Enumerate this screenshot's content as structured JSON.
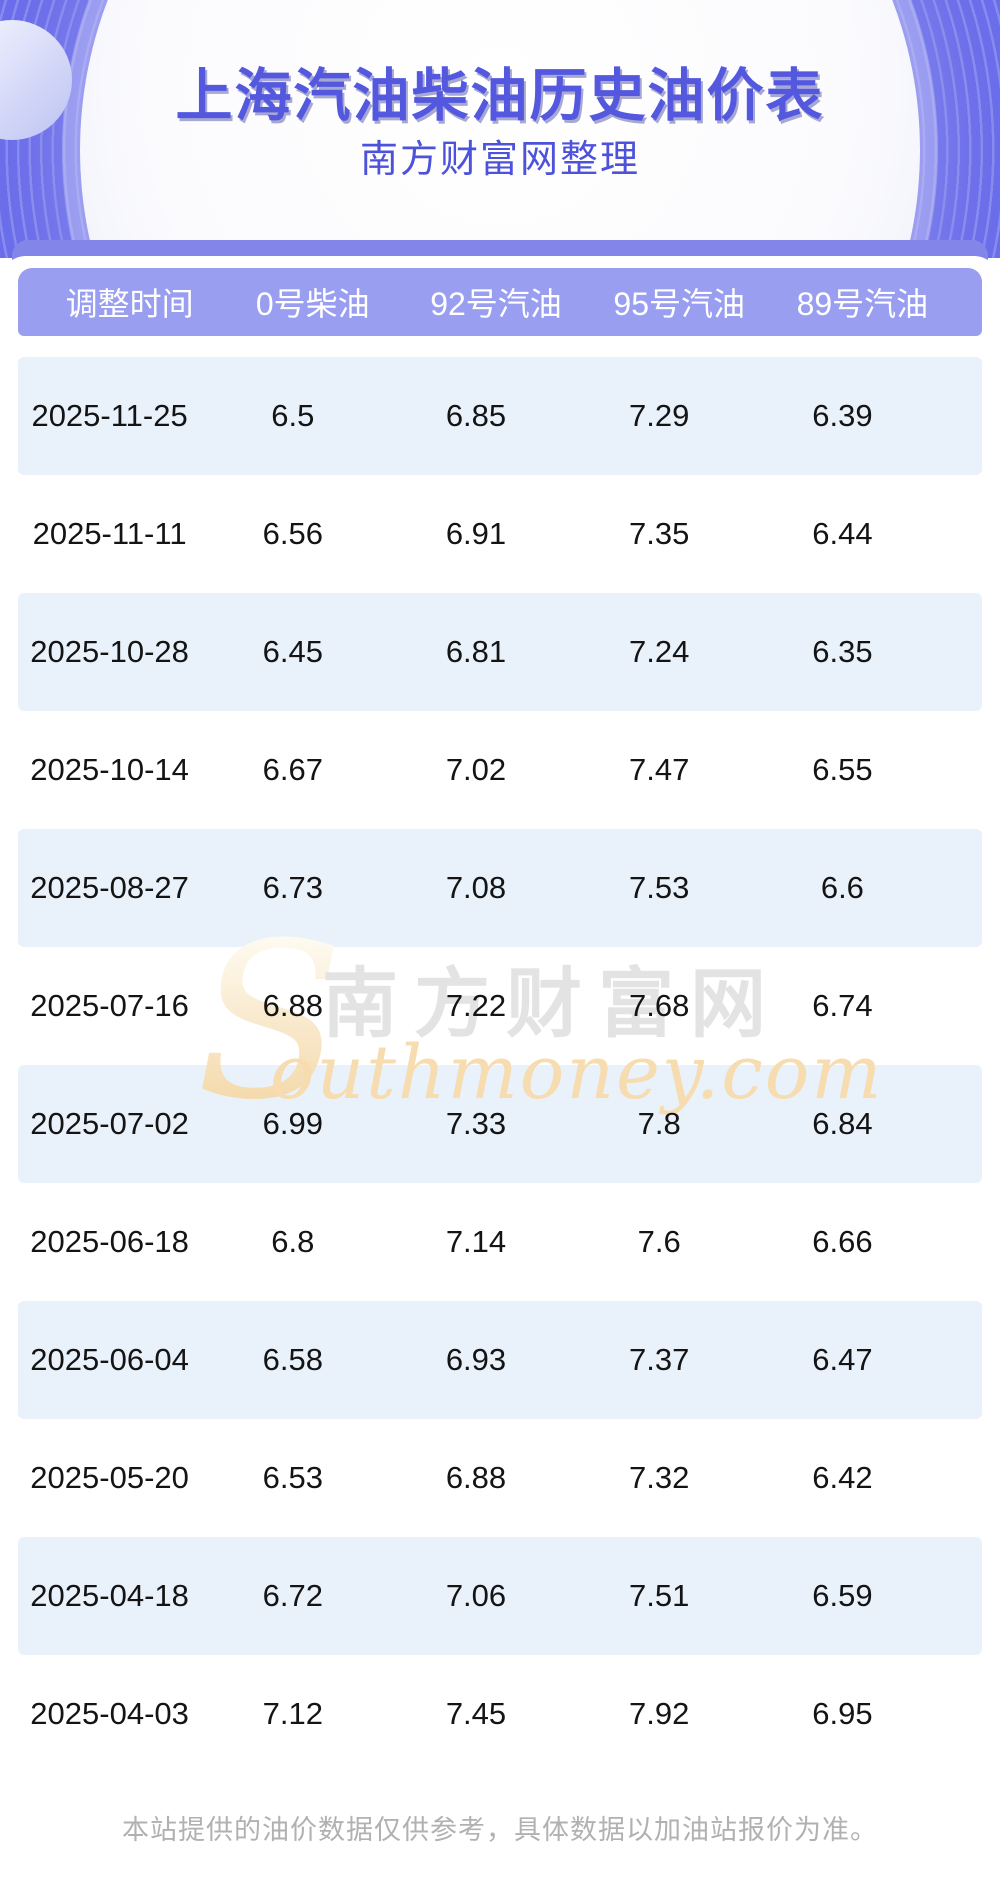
{
  "banner": {
    "title": "上海汽油柴油历史油价表",
    "subtitle": "南方财富网整理"
  },
  "chart_data": {
    "type": "table",
    "title": "上海汽油柴油历史油价表",
    "subtitle": "南方财富网整理",
    "columns": [
      "调整时间",
      "0号柴油",
      "92号汽油",
      "95号汽油",
      "89号汽油"
    ],
    "rows": [
      [
        "2025-11-25",
        "6.5",
        "6.85",
        "7.29",
        "6.39"
      ],
      [
        "2025-11-11",
        "6.56",
        "6.91",
        "7.35",
        "6.44"
      ],
      [
        "2025-10-28",
        "6.45",
        "6.81",
        "7.24",
        "6.35"
      ],
      [
        "2025-10-14",
        "6.67",
        "7.02",
        "7.47",
        "6.55"
      ],
      [
        "2025-08-27",
        "6.73",
        "7.08",
        "7.53",
        "6.6"
      ],
      [
        "2025-07-16",
        "6.88",
        "7.22",
        "7.68",
        "6.74"
      ],
      [
        "2025-07-02",
        "6.99",
        "7.33",
        "7.8",
        "6.84"
      ],
      [
        "2025-06-18",
        "6.8",
        "7.14",
        "7.6",
        "6.66"
      ],
      [
        "2025-06-04",
        "6.58",
        "6.93",
        "7.37",
        "6.47"
      ],
      [
        "2025-05-20",
        "6.53",
        "6.88",
        "7.32",
        "6.42"
      ],
      [
        "2025-04-18",
        "6.72",
        "7.06",
        "7.51",
        "6.59"
      ],
      [
        "2025-04-03",
        "7.12",
        "7.45",
        "7.92",
        "6.95"
      ]
    ]
  },
  "watermark": {
    "initial": "S",
    "cn": "南方财富网",
    "en": "outhmoney.com"
  },
  "footer": {
    "disclaimer": "本站提供的油价数据仅供参考，具体数据以加油站报价为准。"
  },
  "colors": {
    "banner_purple": "#6b6eea",
    "header_bar_lavender": "#9a9ef1",
    "backdrop_bar": "#8386e8",
    "alt_row_blue": "#e9f1fb",
    "title_blue": "#5358de",
    "watermark_orange": "#f6dcae",
    "footer_gray": "#b1b1b1"
  }
}
